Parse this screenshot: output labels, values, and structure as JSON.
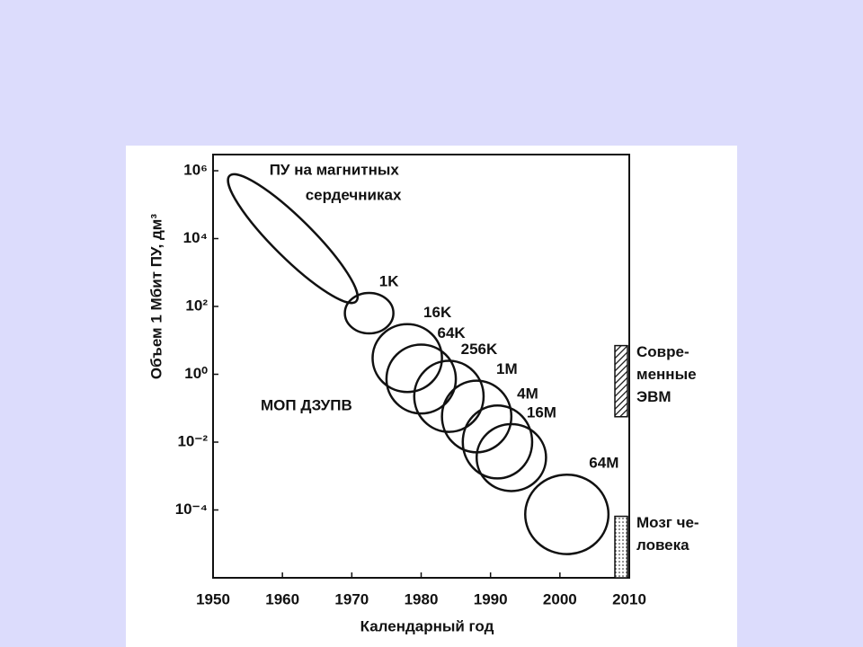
{
  "chart_data": {
    "type": "region",
    "y_label": "Объем 1 Мбит ПУ, дм³",
    "x_label": "Календарный год",
    "xlim": [
      1950,
      2010
    ],
    "xticks": [
      1950,
      1960,
      1970,
      1980,
      1990,
      2000,
      2010
    ],
    "ylim": [
      1e-06,
      3000000
    ],
    "log_y": true,
    "yticks": [
      {
        "value": 1000000,
        "label": "10⁶"
      },
      {
        "value": 10000,
        "label": "10⁴"
      },
      {
        "value": 100,
        "label": "10²"
      },
      {
        "value": 1,
        "label": "10⁰"
      },
      {
        "value": 0.01,
        "label": "10⁻²"
      },
      {
        "value": 0.0001,
        "label": "10⁻⁴"
      }
    ],
    "annotation": "МОП ДЗУПВ",
    "regions": [
      {
        "label": [
          "ПУ на магнитных",
          "сердечниках"
        ],
        "shape": "capsule",
        "x": [
          1951,
          1972
        ],
        "y": [
          74,
          1350000
        ]
      },
      {
        "label": "1K",
        "shape": "ellipse",
        "x": [
          1969,
          1976
        ],
        "y": [
          16,
          250
        ]
      },
      {
        "label": "16K",
        "shape": "ellipse",
        "x": [
          1973,
          1983
        ],
        "y": [
          0.3,
          30
        ]
      },
      {
        "label": "64K",
        "shape": "ellipse",
        "x": [
          1975,
          1985
        ],
        "y": [
          0.07,
          7.5
        ]
      },
      {
        "label": "256K",
        "shape": "ellipse",
        "x": [
          1979,
          1989
        ],
        "y": [
          0.02,
          2.5
        ]
      },
      {
        "label": "1M",
        "shape": "ellipse",
        "x": [
          1983,
          1993
        ],
        "y": [
          0.005,
          0.65
        ]
      },
      {
        "label": "4M",
        "shape": "ellipse",
        "x": [
          1986,
          1996
        ],
        "y": [
          0.00085,
          0.12
        ]
      },
      {
        "label": "16M",
        "shape": "ellipse",
        "x": [
          1988,
          1998
        ],
        "y": [
          0.00036,
          0.034
        ]
      },
      {
        "label": "64M",
        "shape": "ellipse",
        "x": [
          1995,
          2007
        ],
        "y": [
          5e-06,
          0.0011
        ]
      }
    ],
    "bands": [
      {
        "label": [
          "Совре-",
          "менные",
          "ЭВМ"
        ],
        "y": [
          0.056,
          7
        ],
        "fill": "hatch"
      },
      {
        "label": [
          "Мозг че-",
          "ловека"
        ],
        "y": [
          1e-06,
          6.5e-05
        ],
        "fill": "dots"
      }
    ]
  }
}
